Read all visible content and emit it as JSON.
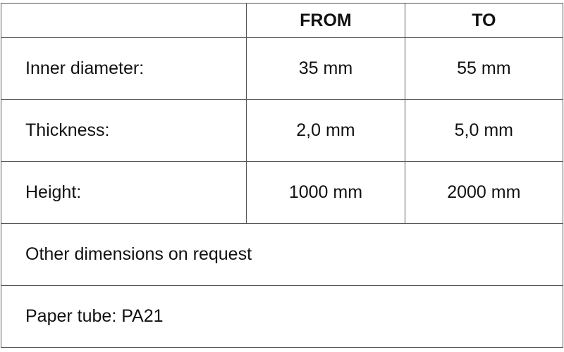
{
  "header": {
    "col1": "",
    "from": "FROM",
    "to": "TO"
  },
  "rows": [
    {
      "label": "Inner diameter:",
      "from": "35 mm",
      "to": "55 mm"
    },
    {
      "label": "Thickness:",
      "from": "2,0 mm",
      "to": "5,0 mm"
    },
    {
      "label": "Height:",
      "from": "1000 mm",
      "to": "2000 mm"
    }
  ],
  "notes": [
    "Other dimensions on request",
    "Paper tube: PA21"
  ]
}
